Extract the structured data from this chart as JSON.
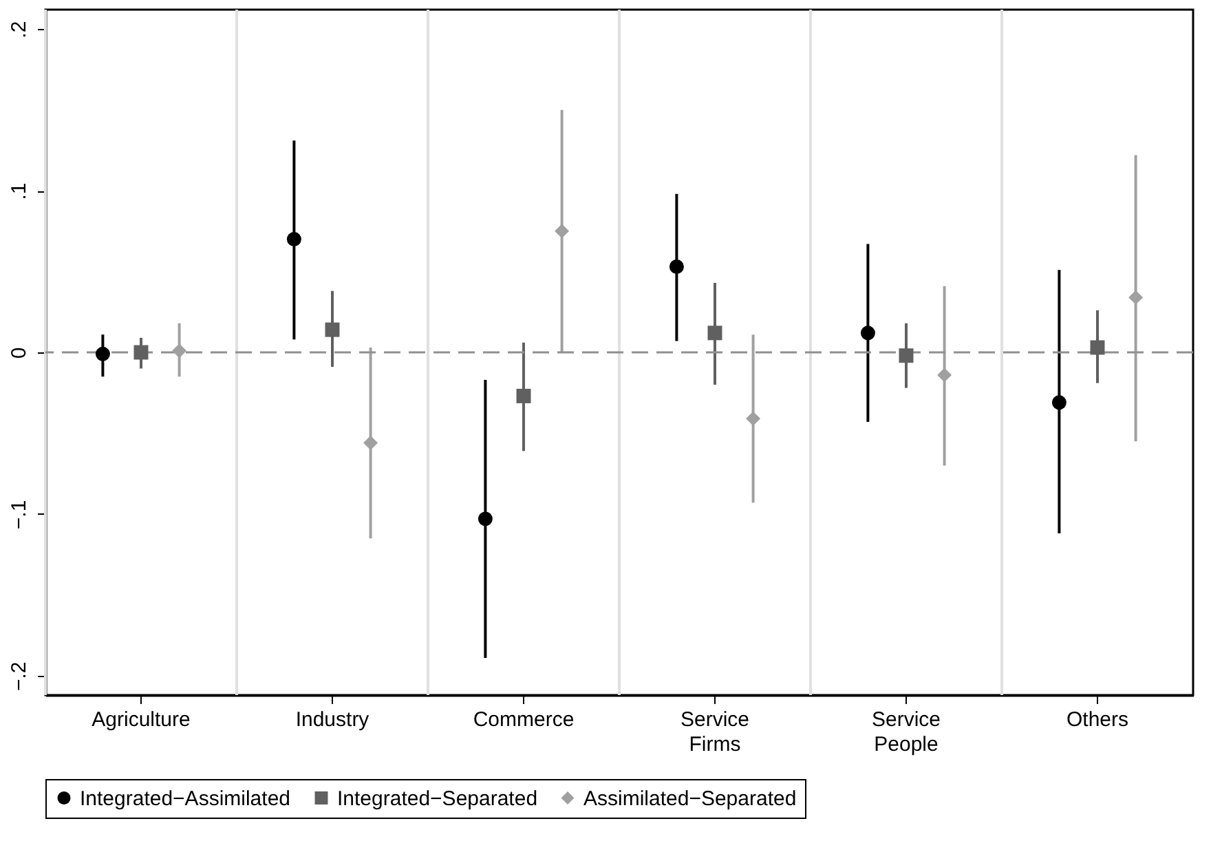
{
  "chart_data": {
    "type": "scatter",
    "categories": [
      "Agriculture",
      "Industry",
      "Commerce",
      "Service Firms",
      "Service People",
      "Others"
    ],
    "series": [
      {
        "name": "Integrated−Assimilated",
        "color": "#000000",
        "marker": "circle",
        "values": [
          -0.001,
          0.07,
          -0.103,
          0.053,
          0.012,
          -0.031
        ],
        "errors": [
          [
            -0.015,
            0.011
          ],
          [
            0.008,
            0.131
          ],
          [
            -0.189,
            -0.017
          ],
          [
            0.007,
            0.098
          ],
          [
            -0.043,
            0.067
          ],
          [
            -0.112,
            0.051
          ]
        ]
      },
      {
        "name": "Integrated−Separated",
        "color": "#606060",
        "marker": "square",
        "values": [
          0.0,
          0.014,
          -0.027,
          0.012,
          -0.002,
          0.003
        ],
        "errors": [
          [
            -0.01,
            0.009
          ],
          [
            -0.009,
            0.038
          ],
          [
            -0.061,
            0.006
          ],
          [
            -0.02,
            0.043
          ],
          [
            -0.022,
            0.018
          ],
          [
            -0.019,
            0.026
          ]
        ]
      },
      {
        "name": "Assimilated−Separated",
        "color": "#a0a0a0",
        "marker": "diamond",
        "values": [
          0.001,
          -0.056,
          0.075,
          -0.041,
          -0.014,
          0.034
        ],
        "errors": [
          [
            -0.015,
            0.018
          ],
          [
            -0.115,
            0.003
          ],
          [
            0.0,
            0.15
          ],
          [
            -0.093,
            0.011
          ],
          [
            -0.07,
            0.041
          ],
          [
            -0.055,
            0.122
          ]
        ]
      }
    ],
    "ylim": [
      -0.212,
      0.212
    ],
    "yticks": [
      {
        "value": -0.2,
        "label": "−.2"
      },
      {
        "value": -0.1,
        "label": "−.1"
      },
      0,
      {
        "value": 0.1,
        "label": ".1"
      },
      {
        "value": 0.2,
        "label": ".2"
      }
    ],
    "ref_lines": [
      {
        "axis": "y",
        "value": 0,
        "color": "#909090",
        "line_style": "dashed"
      }
    ],
    "grid": "x",
    "legend": "bottom"
  }
}
